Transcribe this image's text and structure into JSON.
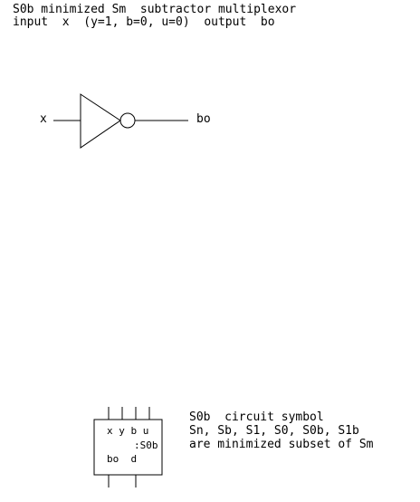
{
  "header": {
    "line1": "S0b minimized Sm  subtractor multiplexor",
    "line2": "input  x  (y=1, b=0, u=0)  output  bo"
  },
  "circuit": {
    "input_label": "x",
    "output_label": "bo"
  },
  "symbol": {
    "top_pins": "x y b u",
    "name": ":S0b",
    "bottom_pins": "bo  d"
  },
  "notes": {
    "line1": "S0b  circuit symbol",
    "line2": "Sn, Sb, S1, S0, S0b, S1b",
    "line3": "are minimized subset of Sm"
  }
}
